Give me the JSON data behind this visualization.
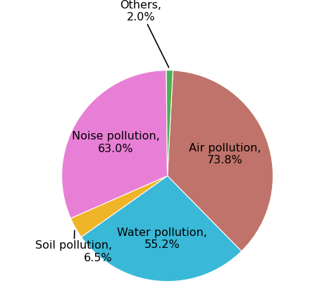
{
  "slices": [
    {
      "name": "Air pollution,\n73.8%",
      "value": 73.8,
      "color": "#c0736a"
    },
    {
      "name": "Water pollution,\n55.2%",
      "value": 55.2,
      "color": "#3ab8d8"
    },
    {
      "name": "Soil pollution,\n6.5%",
      "value": 6.5,
      "color": "#f0b429"
    },
    {
      "name": "Noise pollution,\n63.0%",
      "value": 63.0,
      "color": "#e87fd6"
    },
    {
      "name": "Others,\n2.0%",
      "value": 2.0,
      "color": "#4caf50"
    }
  ],
  "startangle": 87,
  "figsize": [
    4.74,
    4.16
  ],
  "dpi": 100,
  "background_color": "#ffffff",
  "font_size": 11.5
}
